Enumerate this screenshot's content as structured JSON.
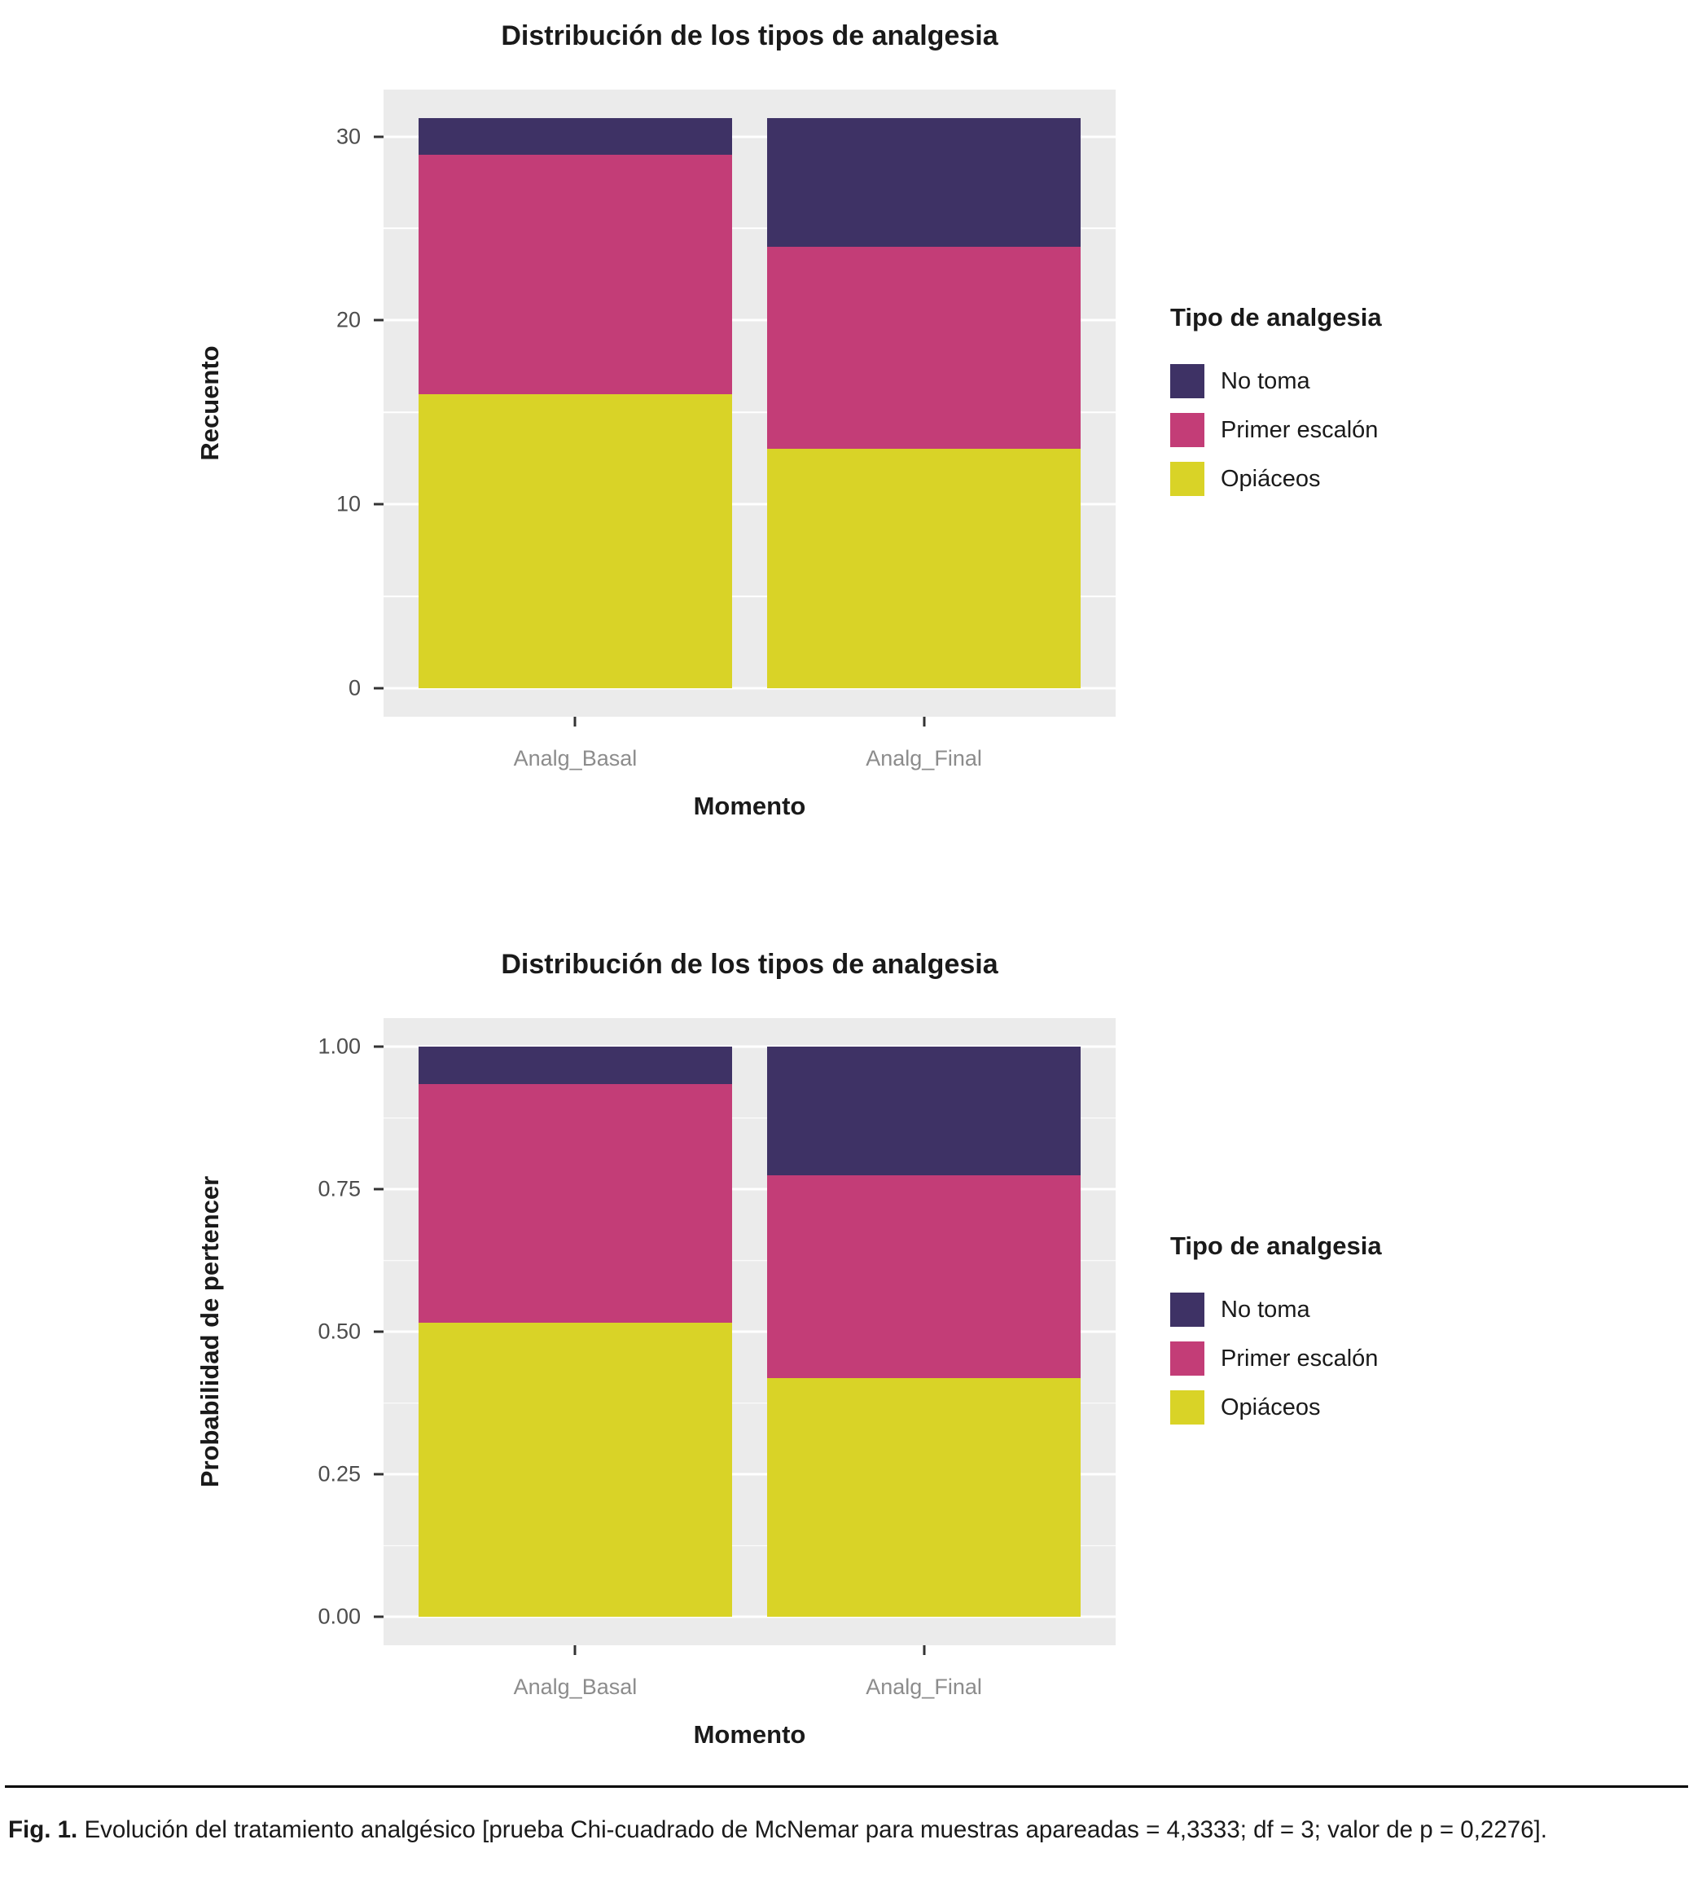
{
  "palette": {
    "no_toma": "#3E3265",
    "primer_escalon": "#C33D77",
    "opiaceos": "#D9D327",
    "panel_background": "#EBEBEB",
    "gridline": "#FFFFFF",
    "axis_text": "#4D4D4D",
    "category_text": "#8C8C8C"
  },
  "legend": {
    "title": "Tipo de analgesia",
    "entries": [
      {
        "label": "No toma",
        "color": "#3E3265"
      },
      {
        "label": "Primer escalón",
        "color": "#C33D77"
      },
      {
        "label": "Opiáceos",
        "color": "#D9D327"
      }
    ]
  },
  "chart_data": [
    {
      "type": "bar",
      "stacked": true,
      "title": "Distribución de los tipos de analgesia",
      "xlabel": "Momento",
      "ylabel": "Recuento",
      "legend_title": "Tipo de analgesia",
      "legend_position": "right",
      "grid": true,
      "categories": [
        "Analg_Basal",
        "Analg_Final"
      ],
      "series": [
        {
          "name": "Opiáceos",
          "color": "#D9D327",
          "values": [
            16,
            13
          ]
        },
        {
          "name": "Primer escalón",
          "color": "#C33D77",
          "values": [
            13,
            11
          ]
        },
        {
          "name": "No toma",
          "color": "#3E3265",
          "values": [
            2,
            7
          ]
        }
      ],
      "totals": [
        31,
        31
      ],
      "ylim": [
        0,
        31
      ],
      "ydomain": [
        -1.55,
        32.55
      ],
      "yticks": [
        0,
        10,
        20,
        30
      ],
      "ytick_labels": [
        "0",
        "10",
        "20",
        "30"
      ],
      "yticks_minor": [
        5,
        15,
        25
      ]
    },
    {
      "type": "bar",
      "stacked": true,
      "title": "Distribución de los tipos de analgesia",
      "xlabel": "Momento",
      "ylabel": "Probabilidad de pertencer",
      "legend_title": "Tipo de analgesia",
      "legend_position": "right",
      "grid": true,
      "categories": [
        "Analg_Basal",
        "Analg_Final"
      ],
      "series": [
        {
          "name": "Opiáceos",
          "color": "#D9D327",
          "values": [
            0.516,
            0.419
          ]
        },
        {
          "name": "Primer escalón",
          "color": "#C33D77",
          "values": [
            0.419,
            0.355
          ]
        },
        {
          "name": "No toma",
          "color": "#3E3265",
          "values": [
            0.065,
            0.226
          ]
        }
      ],
      "ylim": [
        0,
        1
      ],
      "ydomain": [
        -0.05,
        1.05
      ],
      "yticks": [
        0,
        0.25,
        0.5,
        0.75,
        1
      ],
      "ytick_labels": [
        "0.00",
        "0.25",
        "0.50",
        "0.75",
        "1.00"
      ],
      "yticks_minor": [
        0.125,
        0.375,
        0.625,
        0.875
      ]
    }
  ],
  "caption": {
    "label": "Fig. 1.",
    "text": "Evolución del tratamiento analgésico [prueba Chi-cuadrado de McNemar para muestras apareadas = 4,3333; df = 3; valor de p = 0,2276]."
  }
}
